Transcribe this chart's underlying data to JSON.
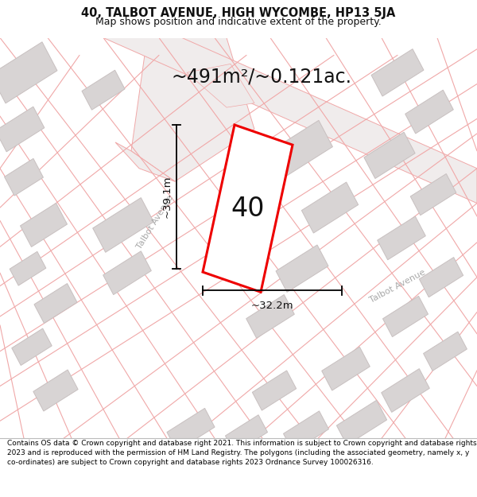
{
  "title_line1": "40, TALBOT AVENUE, HIGH WYCOMBE, HP13 5JA",
  "title_line2": "Map shows position and indicative extent of the property.",
  "area_text": "~491m²/~0.121ac.",
  "property_number": "40",
  "width_label": "~32.2m",
  "height_label": "~39.1m",
  "footer_text": "Contains OS data © Crown copyright and database right 2021. This information is subject to Crown copyright and database rights 2023 and is reproduced with the permission of HM Land Registry. The polygons (including the associated geometry, namely x, y co-ordinates) are subject to Crown copyright and database rights 2023 Ordnance Survey 100026316.",
  "map_bg": "#ffffff",
  "plot_color": "#ee0000",
  "pink_line": "#f0a8a8",
  "gray_bld": "#d8d4d4",
  "gray_bld_edge": "#c8c0c0",
  "road_label_color": "#aaaaaa",
  "figsize": [
    6.0,
    6.25
  ],
  "dpi": 100,
  "title_fs": 10.5,
  "subtitle_fs": 9,
  "footer_fs": 6.5
}
